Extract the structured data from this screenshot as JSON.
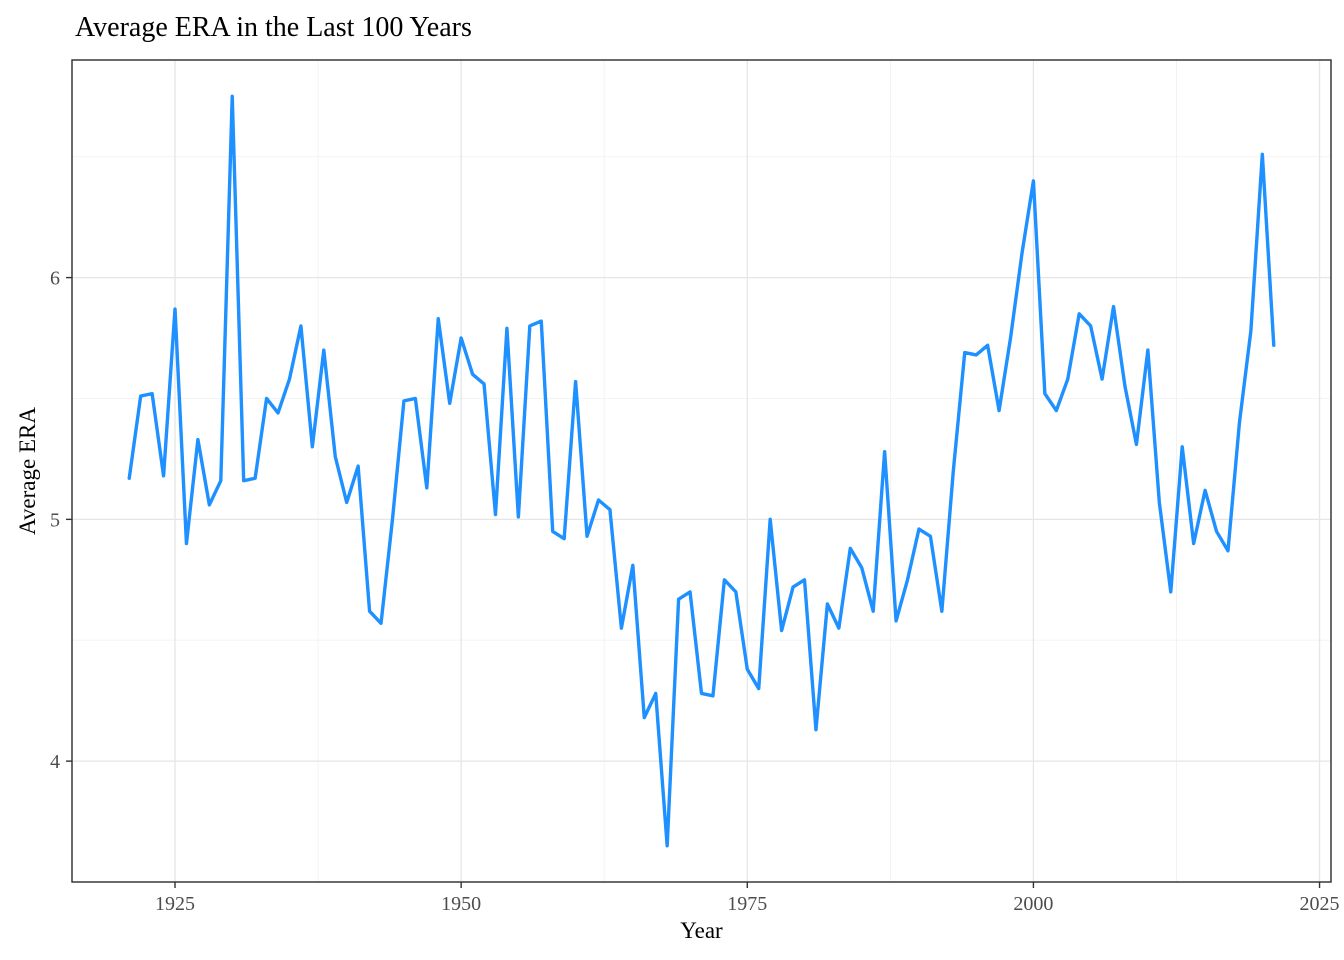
{
  "figure": {
    "background": "#FFFFFF"
  },
  "chart_data": {
    "type": "line",
    "title": "Average ERA in the Last 100 Years",
    "xlabel": "Year",
    "ylabel": "Average ERA",
    "legend": "none",
    "grid": "major+minor",
    "xlim": [
      1916,
      2026
    ],
    "ylim": [
      3.5,
      6.9
    ],
    "x_ticks": [
      1925,
      1950,
      1975,
      2000,
      2025
    ],
    "y_ticks": [
      4,
      5,
      6
    ],
    "x_minor": [
      1937.5,
      1962.5,
      1987.5,
      2012.5
    ],
    "y_minor": [
      4.5,
      5.5,
      6.5
    ],
    "line_color": "#1E90FF",
    "panel_background": "#FFFFFF",
    "panel_border_color": "#2B2B2B",
    "grid_major_color": "#E6E6E6",
    "grid_minor_color": "#F2F2F2",
    "tick_color": "#333333",
    "tick_label_color": "#4D4D4D",
    "title_color": "#000000",
    "x": [
      1921,
      1922,
      1923,
      1924,
      1925,
      1926,
      1927,
      1928,
      1929,
      1930,
      1931,
      1932,
      1933,
      1934,
      1935,
      1936,
      1937,
      1938,
      1939,
      1940,
      1941,
      1942,
      1943,
      1944,
      1945,
      1946,
      1947,
      1948,
      1949,
      1950,
      1951,
      1952,
      1953,
      1954,
      1955,
      1956,
      1957,
      1958,
      1959,
      1960,
      1961,
      1962,
      1963,
      1964,
      1965,
      1966,
      1967,
      1968,
      1969,
      1970,
      1971,
      1972,
      1973,
      1974,
      1975,
      1976,
      1977,
      1978,
      1979,
      1980,
      1981,
      1982,
      1983,
      1984,
      1985,
      1986,
      1987,
      1988,
      1989,
      1990,
      1991,
      1992,
      1993,
      1994,
      1995,
      1996,
      1997,
      1998,
      1999,
      2000,
      2001,
      2002,
      2003,
      2004,
      2005,
      2006,
      2007,
      2008,
      2009,
      2010,
      2011,
      2012,
      2013,
      2014,
      2015,
      2016,
      2017,
      2018,
      2019,
      2020,
      2021
    ],
    "series": [
      {
        "name": "Average ERA",
        "values": [
          5.17,
          5.51,
          5.52,
          5.18,
          5.87,
          4.9,
          5.33,
          5.06,
          5.16,
          6.75,
          5.16,
          5.17,
          5.5,
          5.44,
          5.58,
          5.8,
          5.3,
          5.7,
          5.26,
          5.07,
          5.22,
          4.62,
          4.57,
          5.0,
          5.49,
          5.5,
          5.13,
          5.83,
          5.48,
          5.75,
          5.6,
          5.56,
          5.02,
          5.79,
          5.01,
          5.8,
          5.82,
          4.95,
          4.92,
          5.57,
          4.93,
          5.08,
          5.04,
          4.55,
          4.81,
          4.18,
          4.28,
          3.65,
          4.67,
          4.7,
          4.28,
          4.27,
          4.75,
          4.7,
          4.38,
          4.3,
          5.0,
          4.54,
          4.72,
          4.75,
          4.13,
          4.65,
          4.55,
          4.88,
          4.8,
          4.62,
          5.28,
          4.58,
          4.75,
          4.96,
          4.93,
          4.62,
          5.2,
          5.69,
          5.68,
          5.72,
          5.45,
          5.75,
          6.1,
          6.4,
          5.52,
          5.45,
          5.58,
          5.85,
          5.8,
          5.58,
          5.88,
          5.55,
          5.31,
          5.7,
          5.07,
          4.7,
          5.3,
          4.9,
          5.12,
          4.95,
          4.87,
          5.4,
          5.78,
          6.51,
          5.72
        ]
      }
    ]
  }
}
